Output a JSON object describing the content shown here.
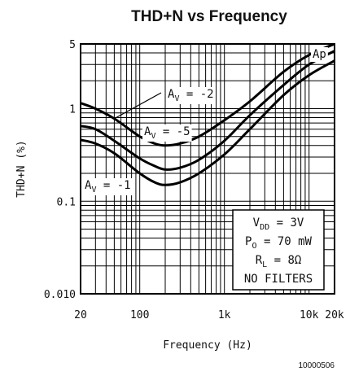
{
  "chart_data": {
    "type": "line",
    "title": "THD+N vs Frequency",
    "xlabel": "Frequency (Hz)",
    "ylabel": "THD+N (%)",
    "x_scale": "log",
    "y_scale": "log",
    "xlim": [
      20,
      20000
    ],
    "ylim": [
      0.01,
      5
    ],
    "grid": true,
    "x_tick_labels": [
      "20",
      "100",
      "1k",
      "10k",
      "20k"
    ],
    "x_tick_values": [
      20,
      100,
      1000,
      10000,
      20000
    ],
    "y_tick_labels": [
      "0.010",
      "0.1",
      "1",
      "5"
    ],
    "y_tick_values": [
      0.01,
      0.1,
      1,
      5
    ],
    "series": [
      {
        "name": "AV = -2",
        "label_main": "A",
        "label_sub": "V",
        "label_rest": " = -2",
        "x": [
          20,
          30,
          50,
          100,
          150,
          200,
          300,
          500,
          1000,
          2000,
          5000,
          10000,
          20000
        ],
        "y": [
          1.15,
          1.0,
          0.78,
          0.5,
          0.42,
          0.4,
          0.42,
          0.5,
          0.75,
          1.2,
          2.5,
          3.8,
          5.0
        ]
      },
      {
        "name": "AV = -5",
        "label_main": "A",
        "label_sub": "V",
        "label_rest": " = -5",
        "x": [
          20,
          30,
          50,
          100,
          150,
          200,
          300,
          500,
          1000,
          2000,
          5000,
          10000,
          20000
        ],
        "y": [
          0.65,
          0.6,
          0.45,
          0.29,
          0.24,
          0.22,
          0.23,
          0.28,
          0.45,
          0.85,
          1.8,
          3.0,
          4.2
        ]
      },
      {
        "name": "AV = -1",
        "label_main": "A",
        "label_sub": "V",
        "label_rest": " = -1",
        "x": [
          20,
          30,
          50,
          100,
          150,
          200,
          300,
          500,
          1000,
          2000,
          5000,
          10000,
          20000
        ],
        "y": [
          0.46,
          0.42,
          0.33,
          0.2,
          0.16,
          0.15,
          0.16,
          0.2,
          0.32,
          0.6,
          1.4,
          2.3,
          3.3
        ]
      }
    ],
    "annotations": {
      "ap": "Ap",
      "conditions": [
        {
          "main": "V",
          "sub": "DD",
          "rest": " = 3V"
        },
        {
          "main": "P",
          "sub": "O",
          "rest": " = 70 mW"
        },
        {
          "main": "R",
          "sub": "L",
          "rest": " = 8Ω"
        },
        {
          "main": "NO FILTERS",
          "sub": "",
          "rest": ""
        }
      ]
    }
  },
  "figure_id": "10000506"
}
